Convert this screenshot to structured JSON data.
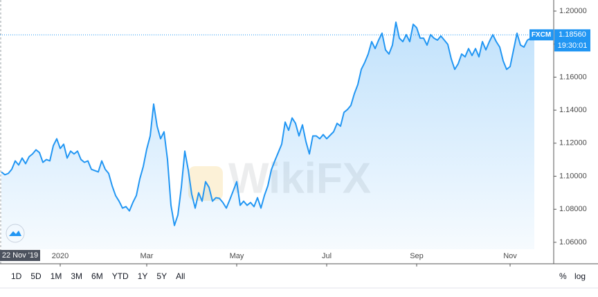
{
  "chart_data": {
    "type": "line",
    "categories": [
      null,
      null,
      null,
      null,
      null,
      null,
      null,
      null,
      null,
      null,
      null,
      null,
      null,
      null,
      null,
      null,
      null,
      "2020",
      null,
      null,
      null,
      null,
      null,
      null,
      null,
      null,
      null,
      null,
      null,
      null,
      null,
      null,
      null,
      null,
      null,
      null,
      null,
      null,
      null,
      null,
      null,
      null,
      "Mar",
      null,
      null,
      null,
      null,
      null,
      null,
      null,
      null,
      null,
      null,
      null,
      null,
      null,
      null,
      null,
      null,
      null,
      null,
      null,
      null,
      null,
      null,
      null,
      null,
      null,
      "May",
      null,
      null,
      null,
      null,
      null,
      null,
      null,
      null,
      null,
      null,
      null,
      null,
      null,
      null,
      null,
      null,
      null,
      null,
      null,
      null,
      null,
      null,
      null,
      null,
      null,
      "Jul",
      null,
      null,
      null,
      null,
      null,
      null,
      null,
      null,
      null,
      null,
      null,
      null,
      null,
      null,
      null,
      null,
      null,
      null,
      null,
      null,
      null,
      null,
      null,
      null,
      null,
      "Sep",
      null,
      null,
      null,
      null,
      null,
      null,
      null,
      null,
      null,
      null,
      null,
      null,
      null,
      null,
      null,
      null,
      null,
      null,
      null,
      null,
      null,
      null,
      null,
      null,
      null,
      null,
      "Nov",
      null,
      null,
      null,
      null,
      null,
      null,
      null
    ],
    "series": [
      {
        "name": "FXCM",
        "color": "#2196f3",
        "values": [
          1.1026,
          1.1009,
          1.1017,
          1.1042,
          1.1093,
          1.1068,
          1.111,
          1.1076,
          1.1118,
          1.1135,
          1.116,
          1.1143,
          1.1084,
          1.1101,
          1.1093,
          1.1185,
          1.1227,
          1.1168,
          1.1194,
          1.111,
          1.1152,
          1.1135,
          1.1152,
          1.1101,
          1.1084,
          1.1093,
          1.1042,
          1.1034,
          1.1026,
          1.1093,
          1.1042,
          1.1017,
          1.0942,
          1.0883,
          1.0849,
          1.0807,
          1.0816,
          1.079,
          1.0841,
          1.0883,
          1.0984,
          1.1059,
          1.1164,
          1.1244,
          1.1437,
          1.1303,
          1.1227,
          1.1269,
          1.1101,
          1.0824,
          1.0702,
          1.0765,
          1.0933,
          1.1152,
          1.1038,
          1.0891,
          1.0807,
          1.09,
          1.0849,
          1.0967,
          1.0933,
          1.0849,
          1.087,
          1.0866,
          1.0841,
          1.0807,
          1.0858,
          1.0912,
          1.0967,
          1.0824,
          1.0849,
          1.0824,
          1.0841,
          1.0816,
          1.087,
          1.0807,
          1.0883,
          1.0942,
          1.1038,
          1.1093,
          1.1143,
          1.1194,
          1.1328,
          1.1278,
          1.1353,
          1.132,
          1.1244,
          1.1311,
          1.121,
          1.1135,
          1.1244,
          1.1244,
          1.1227,
          1.1252,
          1.1227,
          1.1248,
          1.1269,
          1.132,
          1.1303,
          1.1387,
          1.1404,
          1.1429,
          1.15,
          1.1555,
          1.1647,
          1.1689,
          1.174,
          1.1815,
          1.1773,
          1.1824,
          1.1866,
          1.1765,
          1.174,
          1.1794,
          1.1933,
          1.1836,
          1.1815,
          1.1857,
          1.1815,
          1.192,
          1.1899,
          1.1836,
          1.1836,
          1.1794,
          1.1857,
          1.1836,
          1.1824,
          1.1849,
          1.1824,
          1.1798,
          1.171,
          1.1647,
          1.1681,
          1.174,
          1.1723,
          1.1773,
          1.1731,
          1.1773,
          1.1723,
          1.1815,
          1.1765,
          1.1815,
          1.1857,
          1.1815,
          1.1782,
          1.1698,
          1.1647,
          1.1664,
          1.1765,
          1.1866,
          1.1794,
          1.1782,
          1.1824,
          1.1836,
          1.1856
        ]
      }
    ],
    "ylim": [
      1.047,
      1.2067
    ],
    "yticks": [
      {
        "value": 1.06,
        "label": "1.06000"
      },
      {
        "value": 1.08,
        "label": "1.08000"
      },
      {
        "value": 1.1,
        "label": "1.10000"
      },
      {
        "value": 1.12,
        "label": "1.12000"
      },
      {
        "value": 1.14,
        "label": "1.14000"
      },
      {
        "value": 1.16,
        "label": "1.16000"
      },
      {
        "value": 1.18,
        "label": "1.18000"
      },
      {
        "value": 1.2,
        "label": "1.20000"
      }
    ],
    "grid": false,
    "last_price": {
      "value": 1.1856,
      "label": "1.18560"
    },
    "countdown": "19:30:01",
    "crosshair_date": "22 Nov '19",
    "watermark": "WikiFX"
  },
  "toolbar": {
    "ranges": [
      "1D",
      "5D",
      "1M",
      "3M",
      "6M",
      "YTD",
      "1Y",
      "5Y",
      "All"
    ],
    "scale_options": [
      "%",
      "log"
    ]
  }
}
